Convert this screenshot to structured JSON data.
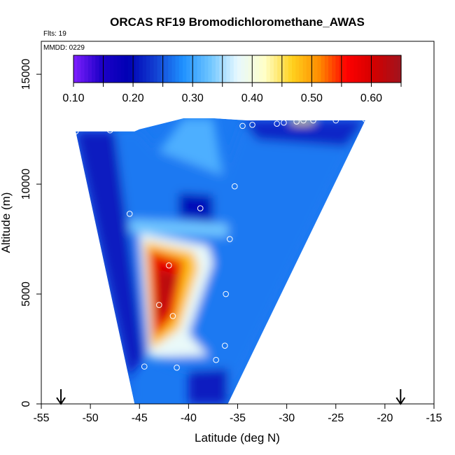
{
  "chart_data": {
    "type": "heatmap",
    "title": "ORCAS RF19 Bromodichloromethane_AWAS",
    "annotations": [
      "Flts: 19",
      "MMDD: 0229"
    ],
    "xlabel": "Latitude (deg N)",
    "ylabel": "Altitude (m)",
    "xlim": [
      -55,
      -15
    ],
    "ylim": [
      0,
      16500
    ],
    "x_ticks": [
      -55,
      -50,
      -45,
      -40,
      -35,
      -30,
      -25,
      -20,
      -15
    ],
    "y_ticks": [
      0,
      5000,
      10000,
      15000
    ],
    "colorbar": {
      "ticks": [
        0.1,
        0.2,
        0.3,
        0.4,
        0.5,
        0.6
      ],
      "tick_labels": [
        "0.10",
        "0.20",
        "0.30",
        "0.40",
        "0.50",
        "0.60"
      ],
      "range": [
        0.1,
        0.65
      ],
      "colors": [
        "#7f1fff",
        "#1e00c8",
        "#0000b4",
        "#1240d2",
        "#1e90ff",
        "#6ec5ff",
        "#e6f8ff",
        "#ffffc8",
        "#ffd21e",
        "#ff8c00",
        "#ff0000",
        "#d20000",
        "#a0141e"
      ],
      "placement": "top-inside"
    },
    "region_polygon": [
      [
        -51.5,
        12400
      ],
      [
        -45.5,
        12400
      ],
      [
        -45,
        12500
      ],
      [
        -40.5,
        13000
      ],
      [
        -37.5,
        13000
      ],
      [
        -34,
        12900
      ],
      [
        -22,
        12900
      ],
      [
        -36,
        0
      ],
      [
        -45.5,
        0
      ],
      [
        -51.5,
        12400
      ]
    ],
    "field_zones": [
      {
        "value": 0.21,
        "polygon": [
          [
            -51.5,
            12400
          ],
          [
            -47.5,
            12400
          ],
          [
            -44.5,
            2200
          ],
          [
            -46,
            1200
          ],
          [
            -45.5,
            0
          ],
          [
            -40,
            0
          ],
          [
            -40,
            1500
          ],
          [
            -36,
            1600
          ],
          [
            -36,
            0
          ],
          [
            -45.5,
            0
          ]
        ]
      },
      {
        "value": 0.27,
        "polygon": [
          [
            -47.5,
            12400
          ],
          [
            -45,
            12500
          ],
          [
            -43,
            11500
          ],
          [
            -36.5,
            10400
          ],
          [
            -34.5,
            12900
          ],
          [
            -30,
            12600
          ],
          [
            -22,
            12900
          ],
          [
            -36,
            0
          ],
          [
            -36,
            1600
          ],
          [
            -40,
            1500
          ],
          [
            -44.5,
            2200
          ]
        ]
      },
      {
        "value": 0.31,
        "polygon": [
          [
            -43,
            11500
          ],
          [
            -40.5,
            13000
          ],
          [
            -37.5,
            13000
          ],
          [
            -36.5,
            10400
          ]
        ]
      },
      {
        "value": 0.22,
        "polygon": [
          [
            -34.5,
            12900
          ],
          [
            -22,
            12900
          ],
          [
            -24,
            11700
          ],
          [
            -30,
            11900
          ],
          [
            -33,
            12000
          ]
        ]
      },
      {
        "value": 0.45,
        "polygon": [
          [
            -29.5,
            12950
          ],
          [
            -27,
            12950
          ],
          [
            -27.5,
            12750
          ],
          [
            -29.5,
            12750
          ]
        ]
      },
      {
        "value": 0.2,
        "polygon": [
          [
            -41,
            9600
          ],
          [
            -37.5,
            9500
          ],
          [
            -37.5,
            8300
          ],
          [
            -41,
            8500
          ]
        ]
      },
      {
        "value": 0.33,
        "polygon": [
          [
            -46,
            8400
          ],
          [
            -36,
            8200
          ],
          [
            -36,
            7600
          ],
          [
            -46,
            7800
          ]
        ]
      },
      {
        "value": 0.38,
        "polygon": [
          [
            -45,
            7800
          ],
          [
            -38,
            7200
          ],
          [
            -37.5,
            6400
          ],
          [
            -40,
            3200
          ],
          [
            -38,
            2200
          ],
          [
            -44,
            2100
          ]
        ]
      },
      {
        "value": 0.48,
        "polygon": [
          [
            -44.5,
            7400
          ],
          [
            -39.5,
            6900
          ],
          [
            -39,
            6200
          ],
          [
            -41,
            3400
          ],
          [
            -43.8,
            2500
          ]
        ]
      },
      {
        "value": 0.58,
        "polygon": [
          [
            -44,
            7000
          ],
          [
            -40.5,
            6500
          ],
          [
            -41.5,
            4000
          ],
          [
            -43.5,
            3000
          ]
        ]
      },
      {
        "value": 0.63,
        "polygon": [
          [
            -43,
            6200
          ],
          [
            -41.2,
            5800
          ],
          [
            -42.5,
            4000
          ],
          [
            -43.2,
            3800
          ]
        ]
      }
    ],
    "points": [
      {
        "x": -51.5,
        "y": 12400
      },
      {
        "x": -48,
        "y": 12450
      },
      {
        "x": -34.5,
        "y": 12650
      },
      {
        "x": -33.5,
        "y": 12700
      },
      {
        "x": -31,
        "y": 12750
      },
      {
        "x": -30.3,
        "y": 12800
      },
      {
        "x": -29,
        "y": 12850
      },
      {
        "x": -28.3,
        "y": 12900
      },
      {
        "x": -27.3,
        "y": 12900
      },
      {
        "x": -25,
        "y": 12900
      },
      {
        "x": -22,
        "y": 12950
      },
      {
        "x": -35.3,
        "y": 9900
      },
      {
        "x": -38.8,
        "y": 8900
      },
      {
        "x": -46,
        "y": 8650
      },
      {
        "x": -35.8,
        "y": 7500
      },
      {
        "x": -42,
        "y": 6300
      },
      {
        "x": -36.2,
        "y": 5000
      },
      {
        "x": -43,
        "y": 4500
      },
      {
        "x": -41.6,
        "y": 4000
      },
      {
        "x": -36.3,
        "y": 2650
      },
      {
        "x": -37.2,
        "y": 2000
      },
      {
        "x": -44.5,
        "y": 1700
      },
      {
        "x": -41.2,
        "y": 1650
      }
    ],
    "markers": [
      {
        "type": "down-arrow",
        "x": -53
      },
      {
        "type": "down-arrow",
        "x": -18.4
      }
    ],
    "grid": false,
    "legend": "none"
  }
}
